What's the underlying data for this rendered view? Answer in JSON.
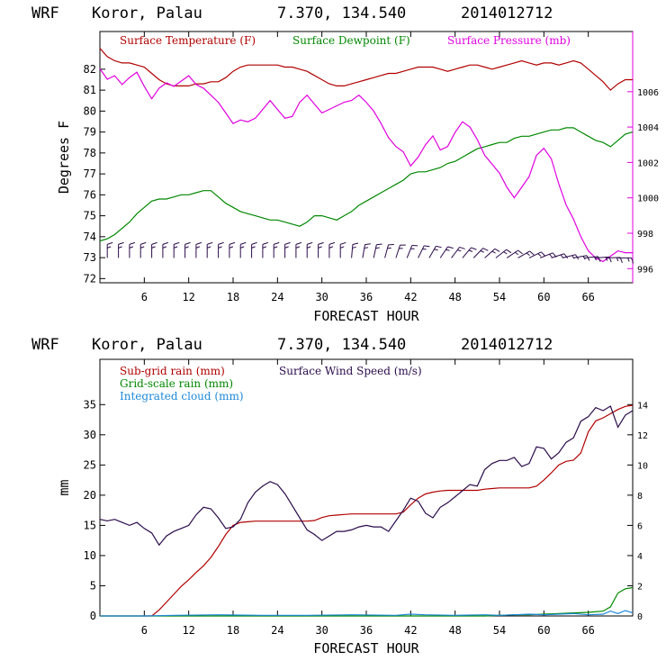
{
  "chart_data": [
    {
      "type": "line",
      "header": {
        "model": "WRF",
        "location": "Koror, Palau",
        "coords": "7.370, 134.540",
        "init": "2014012712"
      },
      "xlabel": "FORECAST HOUR",
      "ylabel": "Degrees F",
      "xlim": [
        0,
        72
      ],
      "xticks": [
        6,
        12,
        18,
        24,
        30,
        36,
        42,
        48,
        54,
        60,
        66
      ],
      "xtick_labels": [
        "6",
        "12",
        "18",
        "24",
        "30",
        "36",
        "42",
        "48",
        "54",
        "60",
        "66"
      ],
      "ylim": [
        71.8,
        83.8
      ],
      "yticks": [
        72,
        73,
        74,
        75,
        76,
        77,
        78,
        79,
        80,
        81,
        82
      ],
      "ytick_labels": [
        "72",
        "73",
        "74",
        "75",
        "76",
        "77",
        "78",
        "79",
        "80",
        "81",
        "82"
      ],
      "y2lim": [
        995.2,
        1009.4
      ],
      "y2ticks": [
        996,
        998,
        1000,
        1002,
        1004,
        1006
      ],
      "y2tick_labels": [
        "996",
        "998",
        "1000",
        "1002",
        "1004",
        "1006"
      ],
      "grid": false,
      "legend_position": "top",
      "series": [
        {
          "name": "Surface Temperature (F)",
          "color": "#b00000",
          "axis": "left",
          "x": [
            0,
            1,
            2,
            3,
            4,
            5,
            6,
            7,
            8,
            9,
            10,
            11,
            12,
            13,
            14,
            15,
            16,
            17,
            18,
            19,
            20,
            21,
            22,
            23,
            24,
            25,
            26,
            27,
            28,
            29,
            30,
            31,
            32,
            33,
            34,
            35,
            36,
            37,
            38,
            39,
            40,
            41,
            42,
            43,
            44,
            45,
            46,
            47,
            48,
            49,
            50,
            51,
            52,
            53,
            54,
            55,
            56,
            57,
            58,
            59,
            60,
            61,
            62,
            63,
            64,
            65,
            66,
            67,
            68,
            69,
            70,
            71,
            72
          ],
          "values": [
            83.0,
            82.6,
            82.4,
            82.3,
            82.3,
            82.2,
            82.1,
            81.8,
            81.5,
            81.3,
            81.2,
            81.2,
            81.2,
            81.3,
            81.3,
            81.4,
            81.4,
            81.6,
            81.9,
            82.1,
            82.2,
            82.2,
            82.2,
            82.2,
            82.2,
            82.1,
            82.1,
            82.0,
            81.9,
            81.7,
            81.5,
            81.3,
            81.2,
            81.2,
            81.3,
            81.4,
            81.5,
            81.6,
            81.7,
            81.8,
            81.8,
            81.9,
            82.0,
            82.1,
            82.1,
            82.1,
            82.0,
            81.9,
            82.0,
            82.1,
            82.2,
            82.2,
            82.1,
            82.0,
            82.1,
            82.2,
            82.3,
            82.4,
            82.3,
            82.2,
            82.3,
            82.3,
            82.2,
            82.3,
            82.4,
            82.3,
            82.0,
            81.7,
            81.4,
            81.0,
            81.3,
            81.5,
            81.5
          ]
        },
        {
          "name": "Surface Dewpoint (F)",
          "color": "#008800",
          "axis": "left",
          "x": [
            0,
            1,
            2,
            3,
            4,
            5,
            6,
            7,
            8,
            9,
            10,
            11,
            12,
            13,
            14,
            15,
            16,
            17,
            18,
            19,
            20,
            21,
            22,
            23,
            24,
            25,
            26,
            27,
            28,
            29,
            30,
            31,
            32,
            33,
            34,
            35,
            36,
            37,
            38,
            39,
            40,
            41,
            42,
            43,
            44,
            45,
            46,
            47,
            48,
            49,
            50,
            51,
            52,
            53,
            54,
            55,
            56,
            57,
            58,
            59,
            60,
            61,
            62,
            63,
            64,
            65,
            66,
            67,
            68,
            69,
            70,
            71,
            72
          ],
          "values": [
            73.8,
            73.9,
            74.1,
            74.4,
            74.7,
            75.1,
            75.4,
            75.7,
            75.8,
            75.8,
            75.9,
            76.0,
            76.0,
            76.1,
            76.2,
            76.2,
            75.9,
            75.6,
            75.4,
            75.2,
            75.1,
            75.0,
            74.9,
            74.8,
            74.8,
            74.7,
            74.6,
            74.5,
            74.7,
            75.0,
            75.0,
            74.9,
            74.8,
            75.0,
            75.2,
            75.5,
            75.7,
            75.9,
            76.1,
            76.3,
            76.5,
            76.7,
            77.0,
            77.1,
            77.1,
            77.2,
            77.3,
            77.5,
            77.6,
            77.8,
            78.0,
            78.2,
            78.3,
            78.4,
            78.5,
            78.5,
            78.7,
            78.8,
            78.8,
            78.9,
            79.0,
            79.1,
            79.1,
            79.2,
            79.2,
            79.0,
            78.8,
            78.6,
            78.5,
            78.3,
            78.6,
            78.9,
            79.0
          ]
        },
        {
          "name": "Surface Pressure (mb)",
          "color": "#e000e0",
          "axis": "right",
          "x": [
            0,
            1,
            2,
            3,
            4,
            5,
            6,
            7,
            8,
            9,
            10,
            11,
            12,
            13,
            14,
            15,
            16,
            17,
            18,
            19,
            20,
            21,
            22,
            23,
            24,
            25,
            26,
            27,
            28,
            29,
            30,
            31,
            32,
            33,
            34,
            35,
            36,
            37,
            38,
            39,
            40,
            41,
            42,
            43,
            44,
            45,
            46,
            47,
            48,
            49,
            50,
            51,
            52,
            53,
            54,
            55,
            56,
            57,
            58,
            59,
            60,
            61,
            62,
            63,
            64,
            65,
            66,
            67,
            68,
            69,
            70,
            71,
            72
          ],
          "values": [
            1007.3,
            1006.7,
            1006.9,
            1006.4,
            1006.8,
            1007.1,
            1006.3,
            1005.6,
            1006.2,
            1006.5,
            1006.3,
            1006.6,
            1006.9,
            1006.4,
            1006.2,
            1005.8,
            1005.4,
            1004.8,
            1004.2,
            1004.4,
            1004.3,
            1004.5,
            1005.0,
            1005.5,
            1005.0,
            1004.5,
            1004.6,
            1005.4,
            1005.8,
            1005.3,
            1004.8,
            1005.0,
            1005.2,
            1005.4,
            1005.5,
            1005.8,
            1005.4,
            1004.9,
            1004.2,
            1003.4,
            1002.9,
            1002.6,
            1001.8,
            1002.3,
            1003.0,
            1003.5,
            1002.7,
            1002.9,
            1003.7,
            1004.3,
            1004.0,
            1003.3,
            1002.4,
            1001.9,
            1001.4,
            1000.6,
            1000.0,
            1000.6,
            1001.2,
            1002.4,
            1002.8,
            1002.2,
            1000.8,
            999.6,
            998.8,
            997.8,
            997.0,
            996.6,
            996.4,
            996.7,
            997.0,
            996.9,
            996.9
          ]
        }
      ],
      "wind_barbs": {
        "y_level": 73.2,
        "x_start": 1,
        "x_step": 1.5,
        "barb_count": 47,
        "directions_deg": [
          -25,
          -25,
          -25,
          -24,
          -24,
          -23,
          -23,
          -22,
          -22,
          -21,
          -21,
          -20,
          -20,
          -20,
          -19,
          -19,
          -18,
          -18,
          -17,
          -17,
          -16,
          -16,
          -16,
          -15,
          -15,
          -14,
          -14,
          -13,
          -13,
          -13,
          -12,
          -12,
          -12,
          -11,
          -11,
          -11,
          -10,
          -10,
          -10,
          -9,
          -9,
          -9,
          -8,
          -8,
          -8,
          -7,
          -7
        ],
        "rotation_deg": [
          0,
          0,
          0,
          0,
          0,
          0,
          0,
          0,
          0,
          0,
          0,
          0,
          0,
          0,
          0,
          0,
          0,
          0,
          0,
          0,
          0,
          0,
          5,
          10,
          12,
          15,
          18,
          22,
          26,
          30,
          34,
          37,
          40,
          44,
          48,
          52,
          56,
          60,
          64,
          68,
          72,
          76,
          80,
          84,
          86,
          88,
          90
        ]
      }
    },
    {
      "type": "line",
      "header": {
        "model": "WRF",
        "location": "Koror, Palau",
        "coords": "7.370, 134.540",
        "init": "2014012712"
      },
      "xlabel": "FORECAST HOUR",
      "ylabel": "mm",
      "xlim": [
        0,
        72
      ],
      "xticks": [
        6,
        12,
        18,
        24,
        30,
        36,
        42,
        48,
        54,
        60,
        66
      ],
      "xtick_labels": [
        "6",
        "12",
        "18",
        "24",
        "30",
        "36",
        "42",
        "48",
        "54",
        "60",
        "66"
      ],
      "ylim": [
        0,
        42.5
      ],
      "yticks": [
        0,
        5,
        10,
        15,
        20,
        25,
        30,
        35
      ],
      "ytick_labels": [
        "0",
        "5",
        "10",
        "15",
        "20",
        "25",
        "30",
        "35"
      ],
      "y2lim": [
        0,
        17
      ],
      "y2ticks": [
        0,
        2,
        4,
        6,
        8,
        10,
        12,
        14
      ],
      "y2tick_labels": [
        "0",
        "2",
        "4",
        "6",
        "8",
        "10",
        "12",
        "14"
      ],
      "grid": false,
      "legend_position": "top-left",
      "series": [
        {
          "name": "Sub-grid rain (mm)",
          "color": "#b00000",
          "axis": "left",
          "x": [
            0,
            1,
            2,
            3,
            4,
            5,
            6,
            7,
            8,
            9,
            10,
            11,
            12,
            13,
            14,
            15,
            16,
            17,
            18,
            19,
            20,
            21,
            22,
            23,
            24,
            25,
            26,
            27,
            28,
            29,
            30,
            31,
            32,
            33,
            34,
            35,
            36,
            37,
            38,
            39,
            40,
            41,
            42,
            43,
            44,
            45,
            46,
            47,
            48,
            49,
            50,
            51,
            52,
            53,
            54,
            55,
            56,
            57,
            58,
            59,
            60,
            61,
            62,
            63,
            64,
            65,
            66,
            67,
            68,
            69,
            70,
            71,
            72
          ],
          "values": [
            0,
            0,
            0,
            0,
            0,
            0,
            0,
            0,
            1.0,
            2.3,
            3.6,
            4.9,
            6.0,
            7.2,
            8.3,
            9.7,
            11.5,
            13.5,
            15.0,
            15.5,
            15.6,
            15.7,
            15.7,
            15.7,
            15.7,
            15.7,
            15.7,
            15.7,
            15.7,
            15.8,
            16.3,
            16.6,
            16.7,
            16.8,
            16.9,
            16.9,
            16.9,
            16.9,
            16.9,
            16.9,
            16.9,
            17.2,
            18.4,
            19.5,
            20.2,
            20.5,
            20.7,
            20.8,
            20.8,
            20.8,
            20.8,
            20.8,
            21.0,
            21.1,
            21.2,
            21.2,
            21.2,
            21.2,
            21.2,
            21.5,
            22.5,
            23.7,
            25.0,
            25.6,
            25.8,
            27.0,
            30.5,
            32.3,
            32.8,
            33.5,
            34.2,
            34.7,
            34.9
          ]
        },
        {
          "name": "Surface Wind Speed (m/s)",
          "color": "#2a0a4a",
          "axis": "right",
          "x": [
            0,
            1,
            2,
            3,
            4,
            5,
            6,
            7,
            8,
            9,
            10,
            11,
            12,
            13,
            14,
            15,
            16,
            17,
            18,
            19,
            20,
            21,
            22,
            23,
            24,
            25,
            26,
            27,
            28,
            29,
            30,
            31,
            32,
            33,
            34,
            35,
            36,
            37,
            38,
            39,
            40,
            41,
            42,
            43,
            44,
            45,
            46,
            47,
            48,
            49,
            50,
            51,
            52,
            53,
            54,
            55,
            56,
            57,
            58,
            59,
            60,
            61,
            62,
            63,
            64,
            65,
            66,
            67,
            68,
            69,
            70,
            71,
            72
          ],
          "values": [
            6.4,
            6.3,
            6.4,
            6.2,
            6.0,
            6.2,
            5.8,
            5.5,
            4.7,
            5.3,
            5.6,
            5.8,
            6.0,
            6.7,
            7.2,
            7.1,
            6.5,
            5.8,
            5.9,
            6.4,
            7.5,
            8.2,
            8.6,
            8.9,
            8.7,
            8.1,
            7.3,
            6.5,
            5.7,
            5.4,
            5.0,
            5.3,
            5.6,
            5.6,
            5.7,
            5.9,
            6.0,
            5.9,
            5.9,
            5.6,
            6.3,
            7.0,
            7.8,
            7.6,
            6.8,
            6.5,
            7.2,
            7.5,
            7.9,
            8.3,
            8.7,
            8.6,
            9.7,
            10.1,
            10.3,
            10.3,
            10.5,
            9.9,
            10.1,
            11.2,
            11.1,
            10.4,
            10.8,
            11.5,
            11.8,
            12.9,
            13.2,
            13.8,
            13.6,
            13.9,
            12.5,
            13.3,
            13.6
          ]
        },
        {
          "name": "Grid-scale rain (mm)",
          "color": "#008800",
          "axis": "left",
          "x": [
            0,
            52,
            54,
            56,
            58,
            60,
            62,
            64,
            66,
            68,
            69,
            70,
            71,
            72
          ],
          "values": [
            0,
            0,
            0.1,
            0.2,
            0.2,
            0.3,
            0.4,
            0.5,
            0.6,
            0.8,
            1.5,
            3.8,
            4.5,
            4.7
          ]
        },
        {
          "name": "Integrated cloud (mm)",
          "color": "#1e88d8",
          "axis": "left",
          "x": [
            0,
            6,
            10,
            16,
            22,
            28,
            34,
            40,
            42,
            44,
            48,
            52,
            54,
            56,
            58,
            60,
            62,
            64,
            66,
            68,
            69,
            70,
            71,
            72
          ],
          "values": [
            0,
            0,
            0.1,
            0.2,
            0.1,
            0.1,
            0.2,
            0.1,
            0.3,
            0.2,
            0.1,
            0.2,
            0.1,
            0.2,
            0.3,
            0.2,
            0.3,
            0.4,
            0.2,
            0.3,
            0.8,
            0.4,
            0.9,
            0.5
          ]
        }
      ]
    }
  ]
}
